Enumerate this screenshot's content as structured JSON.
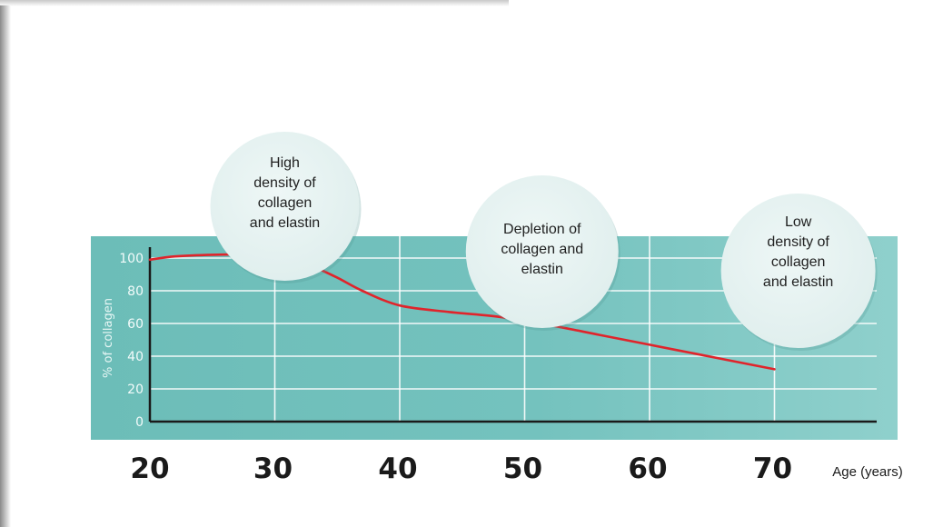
{
  "chart_data": {
    "type": "line",
    "xlabel": "Age (years)",
    "ylabel": "% of collagen",
    "xlim": [
      20,
      78
    ],
    "ylim": [
      0,
      105
    ],
    "x_ticks": [
      20,
      30,
      40,
      50,
      60,
      70
    ],
    "x_tick_labels": [
      "20",
      "30",
      "40",
      "50",
      "60",
      "70"
    ],
    "y_ticks": [
      0,
      20,
      40,
      60,
      80,
      100
    ],
    "y_tick_labels": [
      "0",
      "20",
      "40",
      "60",
      "80",
      "100"
    ],
    "grid": true,
    "series": [
      {
        "x": [
          20,
          22,
          25,
          28,
          31,
          33,
          35,
          37,
          40,
          44,
          48,
          52,
          56,
          60,
          64,
          68,
          70
        ],
        "y": [
          99,
          101,
          102,
          102,
          100,
          95,
          88,
          80,
          71,
          67,
          64,
          59,
          53,
          47,
          41,
          35,
          32
        ],
        "color": "#e0242b"
      }
    ],
    "annotations": [
      {
        "lines": [
          "High",
          "density of",
          "collagen",
          "and elastin"
        ],
        "x": 30.8
      },
      {
        "lines": [
          "Depletion of",
          "collagen and",
          "elastin"
        ],
        "x": 51.4
      },
      {
        "lines": [
          "Low",
          "density of",
          "collagen",
          "and elastin"
        ],
        "x": 71.9
      }
    ]
  },
  "colors": {
    "plot_background": "#74c2be",
    "bubble_fill": "#dfeeed",
    "line": "#e0242b",
    "axis": "#1a1a1a"
  }
}
